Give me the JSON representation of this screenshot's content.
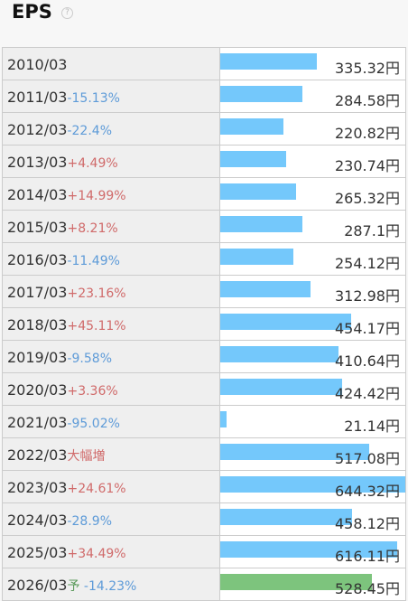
{
  "header": {
    "title": "EPS",
    "help_icon": "?"
  },
  "chart_data": {
    "type": "bar",
    "title": "EPS",
    "unit": "円",
    "rows": [
      {
        "period": "2010/03",
        "change": "",
        "direction": "",
        "forecast": "",
        "value": 335.32,
        "value_label": "335.32円"
      },
      {
        "period": "2011/03",
        "change": "-15.13%",
        "direction": "down",
        "forecast": "",
        "value": 284.58,
        "value_label": "284.58円"
      },
      {
        "period": "2012/03",
        "change": "-22.4%",
        "direction": "down",
        "forecast": "",
        "value": 220.82,
        "value_label": "220.82円"
      },
      {
        "period": "2013/03",
        "change": "+4.49%",
        "direction": "up",
        "forecast": "",
        "value": 230.74,
        "value_label": "230.74円"
      },
      {
        "period": "2014/03",
        "change": "+14.99%",
        "direction": "up",
        "forecast": "",
        "value": 265.32,
        "value_label": "265.32円"
      },
      {
        "period": "2015/03",
        "change": "+8.21%",
        "direction": "up",
        "forecast": "",
        "value": 287.1,
        "value_label": "287.1円"
      },
      {
        "period": "2016/03",
        "change": "-11.49%",
        "direction": "down",
        "forecast": "",
        "value": 254.12,
        "value_label": "254.12円"
      },
      {
        "period": "2017/03",
        "change": "+23.16%",
        "direction": "up",
        "forecast": "",
        "value": 312.98,
        "value_label": "312.98円"
      },
      {
        "period": "2018/03",
        "change": "+45.11%",
        "direction": "up",
        "forecast": "",
        "value": 454.17,
        "value_label": "454.17円"
      },
      {
        "period": "2019/03",
        "change": "-9.58%",
        "direction": "down",
        "forecast": "",
        "value": 410.64,
        "value_label": "410.64円"
      },
      {
        "period": "2020/03",
        "change": "+3.36%",
        "direction": "up",
        "forecast": "",
        "value": 424.42,
        "value_label": "424.42円"
      },
      {
        "period": "2021/03",
        "change": "-95.02%",
        "direction": "down",
        "forecast": "",
        "value": 21.14,
        "value_label": "21.14円"
      },
      {
        "period": "2022/03",
        "change": "大幅増",
        "direction": "up",
        "forecast": "",
        "value": 517.08,
        "value_label": "517.08円"
      },
      {
        "period": "2023/03",
        "change": "+24.61%",
        "direction": "up",
        "forecast": "",
        "value": 644.32,
        "value_label": "644.32円"
      },
      {
        "period": "2024/03",
        "change": "-28.9%",
        "direction": "down",
        "forecast": "",
        "value": 458.12,
        "value_label": "458.12円"
      },
      {
        "period": "2025/03",
        "change": "+34.49%",
        "direction": "up",
        "forecast": "",
        "value": 616.11,
        "value_label": "616.11円"
      },
      {
        "period": "2026/03",
        "change": "-14.23%",
        "direction": "down",
        "forecast": "予",
        "value": 528.45,
        "value_label": "528.45円",
        "is_forecast": true
      }
    ],
    "xlim": [
      0,
      644.32
    ],
    "colors": {
      "actual": "#74c8fb",
      "forecast": "#7dc47d",
      "up": "#d06a6a",
      "down": "#5e9bd8"
    }
  }
}
